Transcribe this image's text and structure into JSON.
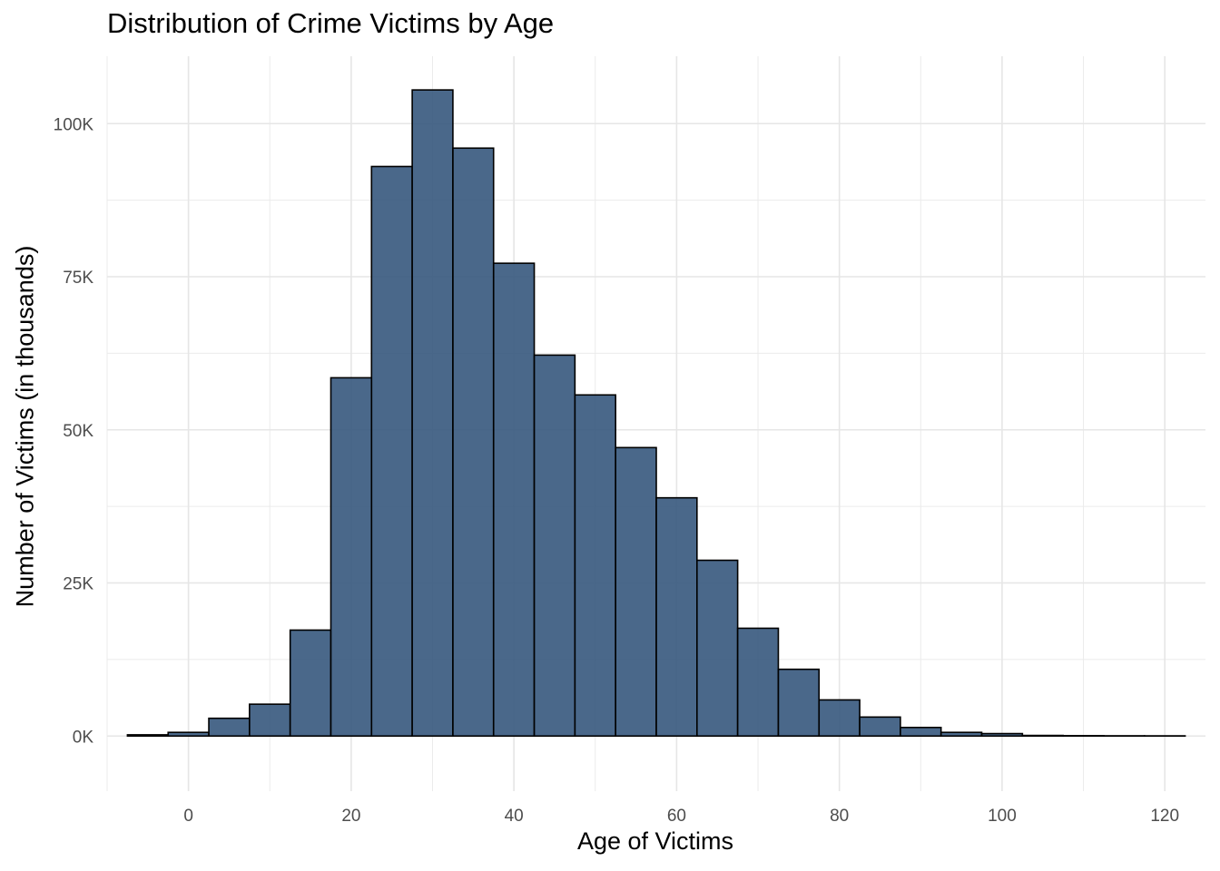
{
  "chart_data": {
    "type": "bar",
    "title": "Distribution of Crime Victims by Age",
    "xlabel": "Age of Victims",
    "ylabel": "Number of Victims (in thousands)",
    "xlim": [
      -10,
      125
    ],
    "ylim": [
      -9000,
      111000
    ],
    "x_ticks": [
      0,
      20,
      40,
      60,
      80,
      100,
      120
    ],
    "x_tick_labels": [
      "0",
      "20",
      "40",
      "60",
      "80",
      "100",
      "120"
    ],
    "y_ticks": [
      0,
      25000,
      50000,
      75000,
      100000
    ],
    "y_tick_labels": [
      "0K",
      "25K",
      "50K",
      "75K",
      "100K"
    ],
    "grid": true,
    "bin_width": 5,
    "bin_starts": [
      -7.5,
      -2.5,
      2.5,
      7.5,
      12.5,
      17.5,
      22.5,
      27.5,
      32.5,
      37.5,
      42.5,
      47.5,
      52.5,
      57.5,
      62.5,
      67.5,
      72.5,
      77.5,
      82.5,
      87.5,
      92.5,
      97.5,
      102.5,
      107.5,
      112.5,
      117.5
    ],
    "values": [
      200,
      600,
      2900,
      5200,
      17300,
      58500,
      93000,
      105500,
      96000,
      77200,
      62200,
      55700,
      47100,
      38900,
      28700,
      17600,
      10900,
      5900,
      3100,
      1400,
      600,
      400,
      100,
      60,
      40,
      30
    ],
    "bar_color": "#36587d",
    "bar_edge_color": "#000000"
  }
}
